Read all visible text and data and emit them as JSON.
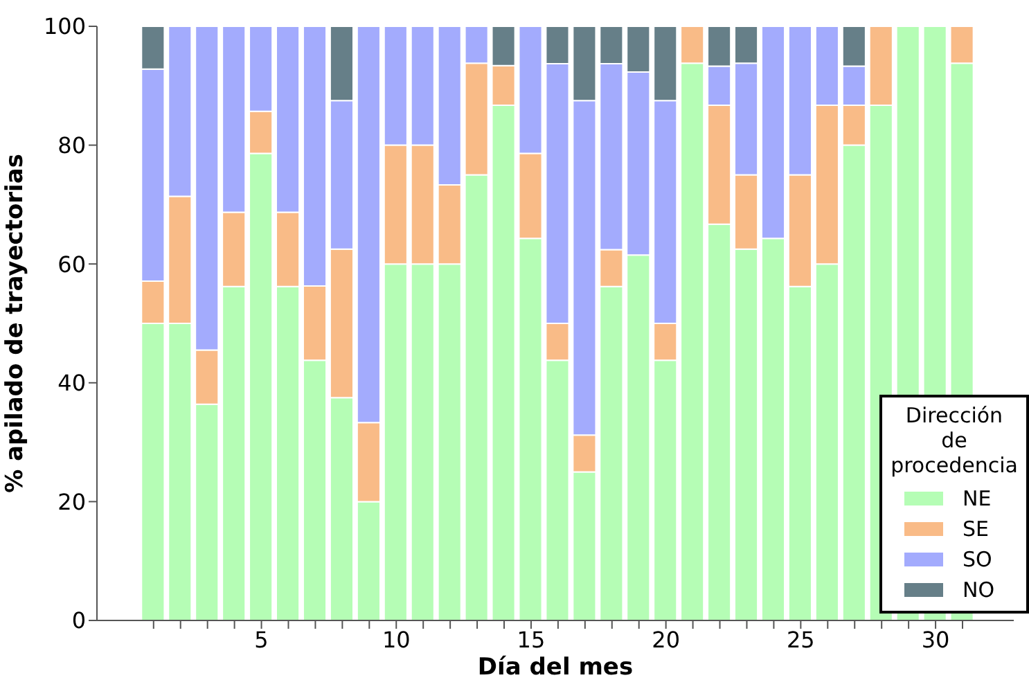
{
  "chart_data": {
    "type": "bar",
    "stacked": true,
    "xlabel": "Día del mes",
    "ylabel": "% apilado de trayectorias",
    "legend_title": "Dirección\nde\nprocedencia",
    "legend": "bottom right",
    "grid": false,
    "x": [
      1,
      2,
      3,
      4,
      5,
      6,
      7,
      8,
      9,
      10,
      11,
      12,
      13,
      14,
      15,
      16,
      17,
      18,
      19,
      20,
      21,
      22,
      23,
      24,
      25,
      26,
      27,
      28,
      29,
      30,
      31
    ],
    "xlim": [
      -1.1,
      32.9
    ],
    "xticks": [
      {
        "value": 1,
        "label": null
      },
      {
        "value": 2,
        "label": null
      },
      {
        "value": 3,
        "label": null
      },
      {
        "value": 4,
        "label": null
      },
      5,
      {
        "value": 6,
        "label": null
      },
      {
        "value": 7,
        "label": null
      },
      {
        "value": 8,
        "label": null
      },
      {
        "value": 9,
        "label": null
      },
      10,
      {
        "value": 11,
        "label": null
      },
      {
        "value": 12,
        "label": null
      },
      {
        "value": 13,
        "label": null
      },
      {
        "value": 14,
        "label": null
      },
      15,
      {
        "value": 16,
        "label": null
      },
      {
        "value": 17,
        "label": null
      },
      {
        "value": 18,
        "label": null
      },
      {
        "value": 19,
        "label": null
      },
      20,
      {
        "value": 21,
        "label": null
      },
      {
        "value": 22,
        "label": null
      },
      {
        "value": 23,
        "label": null
      },
      {
        "value": 24,
        "label": null
      },
      25,
      {
        "value": 26,
        "label": null
      },
      {
        "value": 27,
        "label": null
      },
      {
        "value": 28,
        "label": null
      },
      {
        "value": 29,
        "label": null
      },
      30,
      {
        "value": 31,
        "label": null
      }
    ],
    "ylim": [
      0,
      100
    ],
    "yticks": [
      0,
      20,
      40,
      60,
      80,
      100
    ],
    "series": [
      {
        "name": "NE",
        "color": "#b5fdb5",
        "values": [
          50,
          50,
          36.4,
          56.2,
          78.6,
          56.2,
          43.8,
          37.5,
          20,
          60,
          60,
          60,
          75,
          86.7,
          64.3,
          43.8,
          25,
          56.2,
          61.5,
          43.8,
          93.8,
          66.7,
          62.5,
          64.3,
          56.2,
          60,
          80,
          86.7,
          100,
          100,
          93.8
        ]
      },
      {
        "name": "SE",
        "color": "#f9bb87",
        "values": [
          7.1,
          21.4,
          9.1,
          12.5,
          7.1,
          12.5,
          12.5,
          25,
          13.3,
          20,
          20,
          13.3,
          18.8,
          6.7,
          14.3,
          6.2,
          6.2,
          6.2,
          0,
          6.2,
          6.2,
          20,
          12.5,
          0,
          18.8,
          26.7,
          6.7,
          13.3,
          0,
          0,
          6.2
        ]
      },
      {
        "name": "SO",
        "color": "#a3abfd",
        "values": [
          35.7,
          28.6,
          54.5,
          31.3,
          14.3,
          31.3,
          43.7,
          25,
          66.7,
          20,
          20,
          26.7,
          6.2,
          0,
          21.4,
          43.7,
          56.3,
          31.3,
          30.8,
          37.5,
          0,
          6.6,
          18.8,
          35.7,
          25,
          13.3,
          6.6,
          0,
          0,
          0,
          0
        ]
      },
      {
        "name": "NO",
        "color": "#667f88",
        "values": [
          7.2,
          0,
          0,
          0,
          0,
          0,
          0,
          12.5,
          0,
          0,
          0,
          0,
          0,
          6.6,
          0,
          6.3,
          12.5,
          6.3,
          7.7,
          12.5,
          0,
          6.7,
          6.2,
          0,
          0,
          0,
          6.7,
          0,
          0,
          0,
          0
        ]
      }
    ]
  }
}
